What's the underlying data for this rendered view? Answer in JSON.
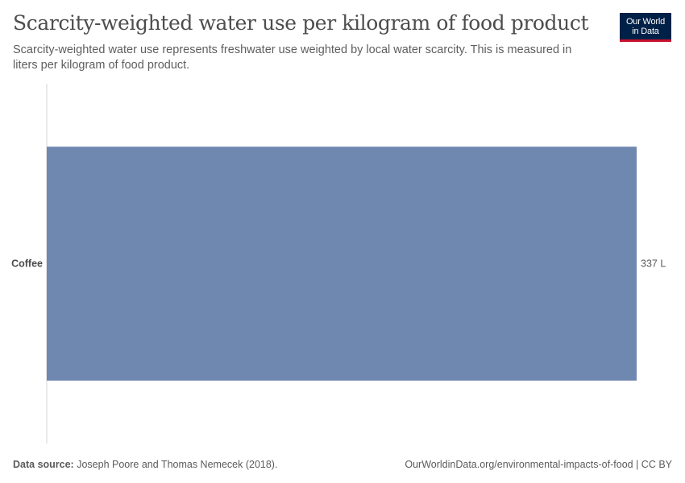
{
  "header": {
    "title": "Scarcity-weighted water use per kilogram of food product",
    "subtitle": "Scarcity-weighted water use represents freshwater use weighted by local water scarcity. This is measured in liters per kilogram of food product."
  },
  "logo": {
    "line1": "Our World",
    "line2": "in Data",
    "bg_color": "#002147",
    "accent_color": "#c8102e"
  },
  "chart_data": {
    "type": "bar",
    "orientation": "horizontal",
    "categories": [
      "Coffee"
    ],
    "values": [
      337
    ],
    "value_labels": [
      "337 L"
    ],
    "unit": "L",
    "xlim": [
      0,
      337
    ],
    "grid": false,
    "bar_color": "#6f88b0"
  },
  "footer": {
    "source_label": "Data source:",
    "source_text": "Joseph Poore and Thomas Nemecek (2018).",
    "url_text": "OurWorldinData.org/environmental-impacts-of-food | CC BY"
  }
}
